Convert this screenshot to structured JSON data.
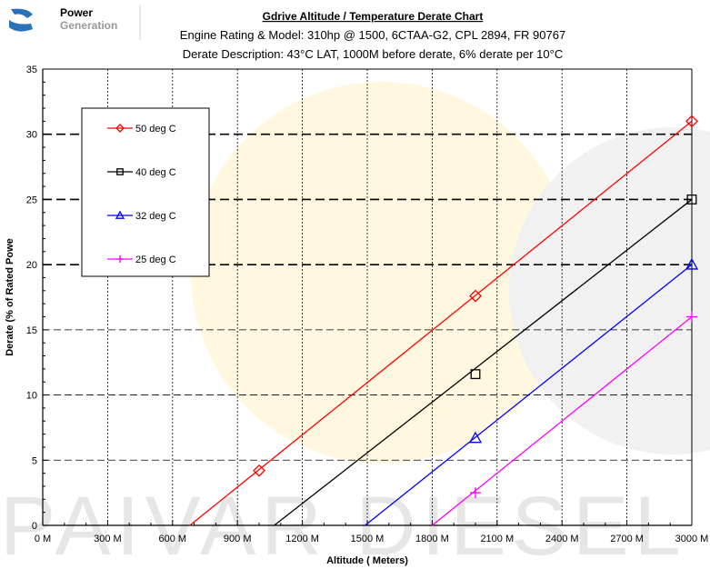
{
  "logo": {
    "brand_line1": "Power",
    "brand_line2": "Generation"
  },
  "watermark": {
    "text": "PAIVAR DIESEL"
  },
  "chart_data": {
    "type": "line",
    "title": "Gdrive Altitude / Temperature Derate Chart",
    "subtitle1": "Engine Rating & Model:  310hp @ 1500, 6CTAA-G2, CPL 2894, FR 90767",
    "subtitle2": "Derate Description:  43°C LAT, 1000M before derate, 6% derate per 10°C",
    "xlabel": "Altitude ( Meters)",
    "ylabel": "Derate (% of Rated Powe",
    "xlim": [
      0,
      3000
    ],
    "ylim": [
      0,
      35
    ],
    "x_ticks": [
      {
        "value": 0,
        "label": "0 M"
      },
      {
        "value": 300,
        "label": "300 M"
      },
      {
        "value": 600,
        "label": "600 M"
      },
      {
        "value": 900,
        "label": "900 M"
      },
      {
        "value": 1200,
        "label": "1200 M"
      },
      {
        "value": 1500,
        "label": "1500 M"
      },
      {
        "value": 1800,
        "label": "1800 M"
      },
      {
        "value": 2100,
        "label": "2100 M"
      },
      {
        "value": 2400,
        "label": "2400 M"
      },
      {
        "value": 2700,
        "label": "2700 M"
      },
      {
        "value": 3000,
        "label": "3000 M"
      }
    ],
    "y_ticks": [
      0,
      5,
      10,
      15,
      20,
      25,
      30,
      35
    ],
    "grid": true,
    "legend_position": "top-left",
    "series": [
      {
        "name": "50 deg C",
        "color": "#ff0000",
        "marker": "diamond",
        "line": [
          [
            680,
            0
          ],
          [
            3000,
            31
          ]
        ],
        "markers": [
          [
            1000,
            4.2
          ],
          [
            2000,
            17.6
          ],
          [
            3000,
            31
          ]
        ]
      },
      {
        "name": "40 deg C",
        "color": "#000000",
        "marker": "square",
        "line": [
          [
            1070,
            0
          ],
          [
            3000,
            25
          ]
        ],
        "markers": [
          [
            2000,
            11.6
          ],
          [
            3000,
            25
          ]
        ]
      },
      {
        "name": "32 deg C",
        "color": "#0000ff",
        "marker": "triangle",
        "line": [
          [
            1490,
            0
          ],
          [
            3000,
            20
          ]
        ],
        "markers": [
          [
            2000,
            6.7
          ],
          [
            3000,
            20
          ]
        ]
      },
      {
        "name": "25 deg C",
        "color": "#ff00ff",
        "marker": "plus",
        "line": [
          [
            1800,
            0
          ],
          [
            3000,
            16
          ]
        ],
        "markers": [
          [
            2000,
            2.5
          ],
          [
            3000,
            16
          ]
        ]
      }
    ]
  }
}
